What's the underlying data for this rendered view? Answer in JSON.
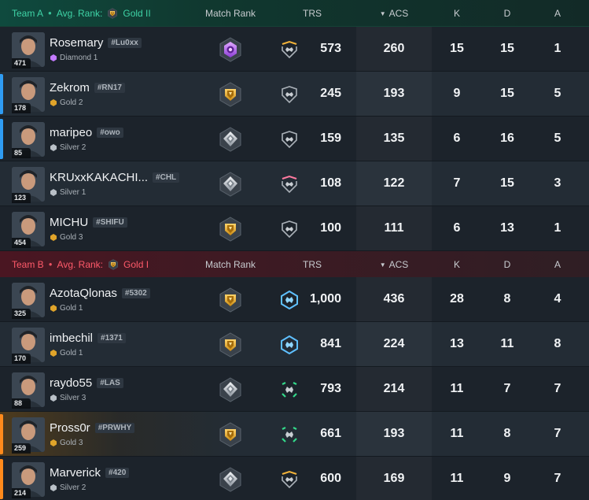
{
  "columns": {
    "match_rank": "Match Rank",
    "trs": "TRS",
    "acs": "ACS",
    "k": "K",
    "d": "D",
    "a": "A"
  },
  "colors": {
    "team_a": "#3fd3a6",
    "team_b": "#ff5a6a",
    "blue_marker": "#2f9cf3",
    "orange_marker": "#ff8a1c"
  },
  "team_a": {
    "name": "Team A",
    "avg_label": "Avg. Rank:",
    "avg_rank": "Gold II",
    "players": [
      {
        "level": "471",
        "name": "Rosemary",
        "tag": "#Lu0xx",
        "rank": "Diamond 1",
        "match_rank_icon": "diamond-rank-icon",
        "trs": "573",
        "acs": "260",
        "k": "15",
        "d": "15",
        "a": "1"
      },
      {
        "level": "178",
        "name": "Zekrom",
        "tag": "#RN17",
        "rank": "Gold 2",
        "match_rank_icon": "gold-rank-icon",
        "trs": "245",
        "acs": "193",
        "k": "9",
        "d": "15",
        "a": "5"
      },
      {
        "level": "85",
        "name": "maripeo",
        "tag": "#owo",
        "rank": "Silver 2",
        "match_rank_icon": "silver-rank-icon",
        "trs": "159",
        "acs": "135",
        "k": "6",
        "d": "16",
        "a": "5"
      },
      {
        "level": "123",
        "name": "KRUxxKAKACHI...",
        "tag": "#CHL",
        "rank": "Silver 1",
        "match_rank_icon": "silver-rank-icon",
        "trs": "108",
        "acs": "122",
        "k": "7",
        "d": "15",
        "a": "3"
      },
      {
        "level": "454",
        "name": "MICHU",
        "tag": "#SHIFU",
        "rank": "Gold 3",
        "match_rank_icon": "gold-rank-icon",
        "trs": "100",
        "acs": "111",
        "k": "6",
        "d": "13",
        "a": "1"
      }
    ]
  },
  "team_b": {
    "name": "Team B",
    "avg_label": "Avg. Rank:",
    "avg_rank": "Gold I",
    "players": [
      {
        "level": "325",
        "name": "AzotaQlonas",
        "tag": "#5302",
        "rank": "Gold 1",
        "match_rank_icon": "gold-rank-icon",
        "trs": "1,000",
        "acs": "436",
        "k": "28",
        "d": "8",
        "a": "4"
      },
      {
        "level": "170",
        "name": "imbechil",
        "tag": "#1371",
        "rank": "Gold 1",
        "match_rank_icon": "gold-rank-icon",
        "trs": "841",
        "acs": "224",
        "k": "13",
        "d": "11",
        "a": "8"
      },
      {
        "level": "88",
        "name": "raydo55",
        "tag": "#LAS",
        "rank": "Silver 3",
        "match_rank_icon": "silver-rank-icon",
        "trs": "793",
        "acs": "214",
        "k": "11",
        "d": "7",
        "a": "7"
      },
      {
        "level": "259",
        "name": "Pross0r",
        "tag": "#PRWHY",
        "rank": "Gold 3",
        "match_rank_icon": "gold-rank-icon",
        "trs": "661",
        "acs": "193",
        "k": "11",
        "d": "8",
        "a": "7"
      },
      {
        "level": "214",
        "name": "Marverick",
        "tag": "#420",
        "rank": "Silver 2",
        "match_rank_icon": "silver-rank-icon",
        "trs": "600",
        "acs": "169",
        "k": "11",
        "d": "9",
        "a": "7"
      }
    ]
  }
}
